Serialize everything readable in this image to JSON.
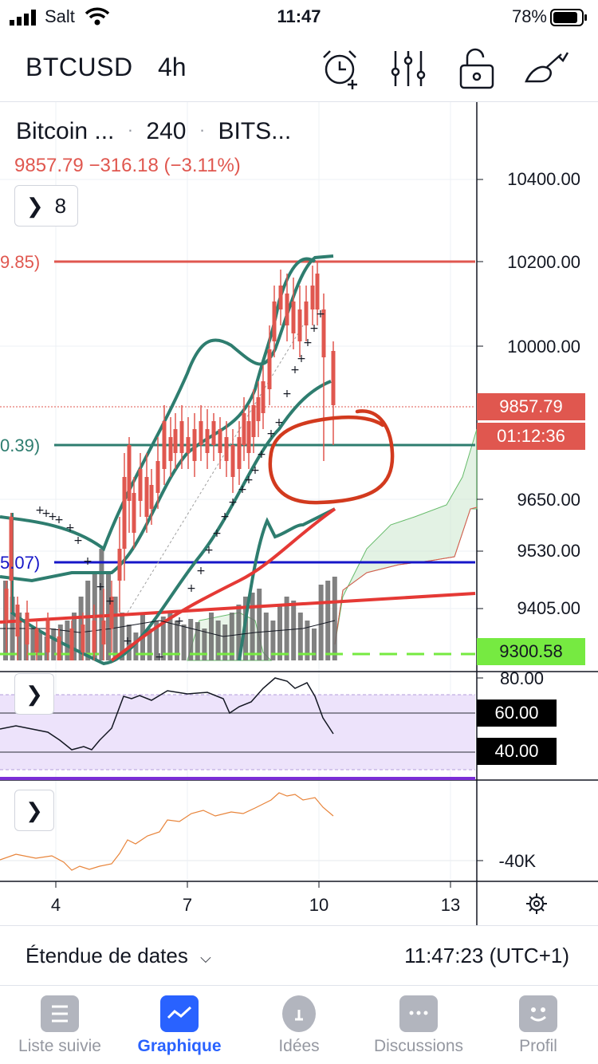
{
  "status_bar": {
    "carrier": "Salt",
    "time": "11:47",
    "battery_percent": "78%"
  },
  "header": {
    "symbol": "BTCUSD",
    "interval": "4h",
    "icons": [
      "alarm-add-icon",
      "indicators-icon",
      "unlock-icon",
      "drawing-tools-icon"
    ]
  },
  "legend": {
    "title": "Bitcoin ...",
    "resolution": "240",
    "exchange": "BITS...",
    "last": "9857.79",
    "change": "−316.18",
    "change_pct": "(−3.11%)",
    "indicator_count": "8"
  },
  "price_axis": [
    "10400.00",
    "10200.00",
    "10000.00",
    "9650.00",
    "9530.00",
    "9405.00"
  ],
  "price_tags": {
    "last_price": "9857.79",
    "countdown": "01:12:36",
    "green_level": "9300.58"
  },
  "left_labels": {
    "red_line": "9.85)",
    "teal_line": "0.39)",
    "blue_line": "5.07)"
  },
  "rsi_axis": [
    "80.00",
    "60.00",
    "40.00"
  ],
  "osc_axis": [
    "-40K"
  ],
  "date_ticks": [
    "4",
    "7",
    "10",
    "13"
  ],
  "range_bar": {
    "label": "Étendue de dates",
    "clock": "11:47:23 (UTC+1)"
  },
  "tabs": [
    {
      "label": "Liste suivie",
      "active": false
    },
    {
      "label": "Graphique",
      "active": true
    },
    {
      "label": "Idées",
      "active": false
    },
    {
      "label": "Discussions",
      "active": false
    },
    {
      "label": "Profil",
      "active": false
    }
  ],
  "colors": {
    "up": "#2e7d6f",
    "down": "#e0574f",
    "accent": "#2962ff",
    "rsi_band": "#ede3fb",
    "green_tag": "#76ea41"
  }
}
